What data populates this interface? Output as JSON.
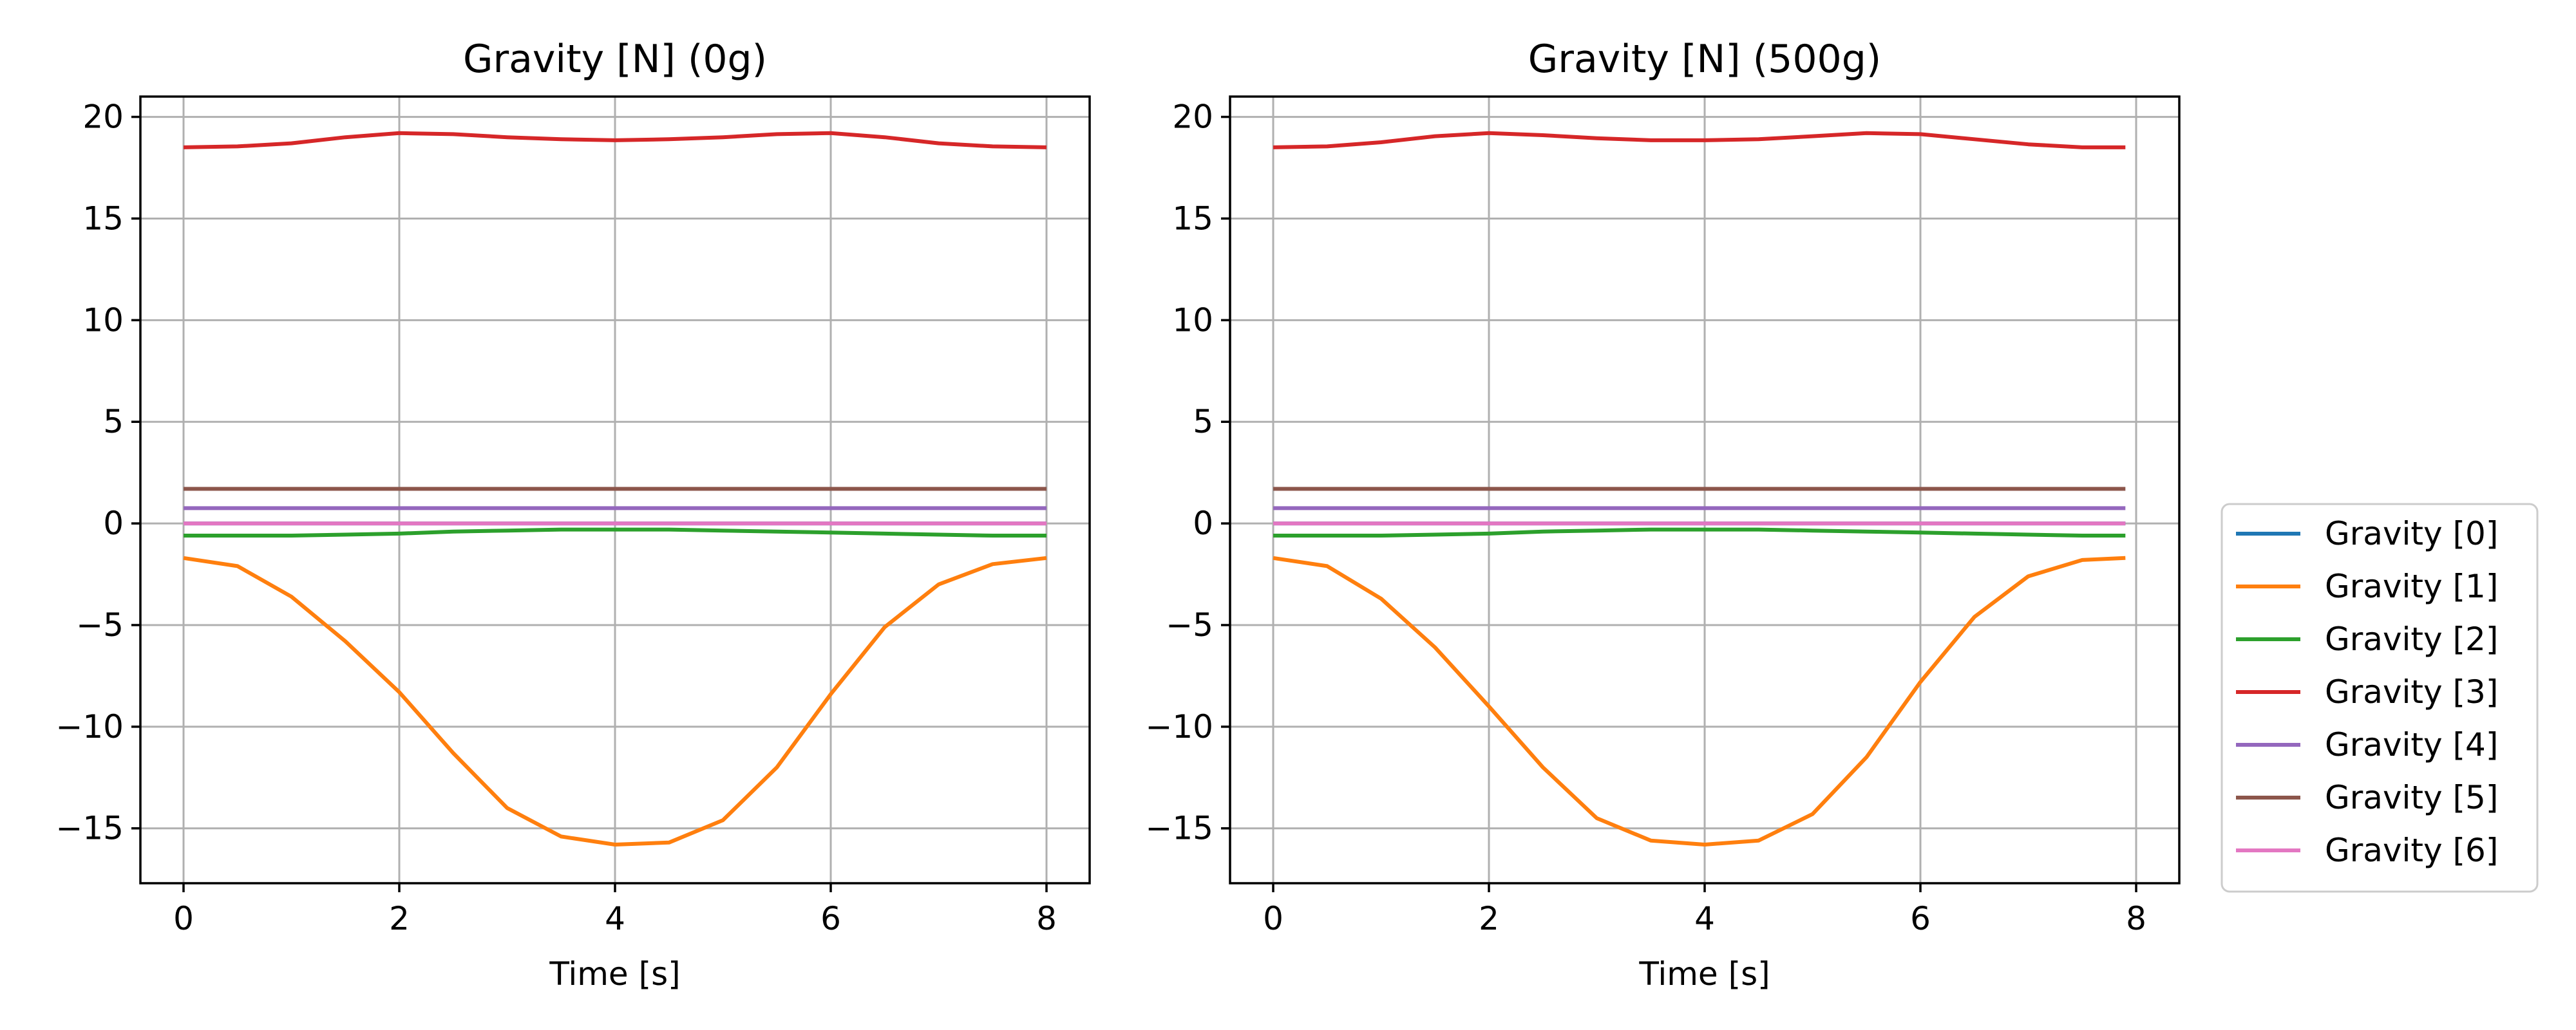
{
  "chart_data": [
    {
      "type": "line",
      "title": "Gravity [N] (0g)",
      "xlabel": "Time [s]",
      "ylabel": "",
      "xlim": [
        -0.4,
        8.4
      ],
      "ylim": [
        -17.7,
        21.0
      ],
      "xticks": [
        0,
        2,
        4,
        6,
        8
      ],
      "xtick_labels": [
        "0",
        "2",
        "4",
        "6",
        "8"
      ],
      "yticks": [
        -15,
        -10,
        -5,
        0,
        5,
        10,
        15,
        20
      ],
      "ytick_labels": [
        "−15",
        "−10",
        "−5",
        "0",
        "5",
        "10",
        "15",
        "20"
      ],
      "grid": true,
      "x": [
        0,
        0.5,
        1,
        1.5,
        2,
        2.5,
        3,
        3.5,
        4,
        4.5,
        5,
        5.5,
        6,
        6.5,
        7,
        7.5,
        8
      ],
      "series": [
        {
          "name": "Gravity [0]",
          "color": "#1f77b4",
          "values": [
            0,
            0,
            0,
            0,
            0,
            0,
            0,
            0,
            0,
            0,
            0,
            0,
            0,
            0,
            0,
            0,
            0
          ]
        },
        {
          "name": "Gravity [1]",
          "color": "#ff7f0e",
          "values": [
            -1.7,
            -2.1,
            -3.6,
            -5.8,
            -8.3,
            -11.3,
            -14.0,
            -15.4,
            -15.8,
            -15.7,
            -14.6,
            -12.0,
            -8.4,
            -5.1,
            -3.0,
            -2.0,
            -1.7
          ]
        },
        {
          "name": "Gravity [2]",
          "color": "#2ca02c",
          "values": [
            -0.6,
            -0.6,
            -0.6,
            -0.55,
            -0.5,
            -0.4,
            -0.35,
            -0.3,
            -0.3,
            -0.3,
            -0.35,
            -0.4,
            -0.45,
            -0.5,
            -0.55,
            -0.6,
            -0.6
          ]
        },
        {
          "name": "Gravity [3]",
          "color": "#d62728",
          "values": [
            18.5,
            18.55,
            18.7,
            19.0,
            19.2,
            19.15,
            19.0,
            18.9,
            18.85,
            18.9,
            19.0,
            19.15,
            19.2,
            19.0,
            18.7,
            18.55,
            18.5
          ]
        },
        {
          "name": "Gravity [4]",
          "color": "#9467bd",
          "values": [
            0.75,
            0.75,
            0.75,
            0.75,
            0.75,
            0.75,
            0.75,
            0.75,
            0.75,
            0.75,
            0.75,
            0.75,
            0.75,
            0.75,
            0.75,
            0.75,
            0.75
          ]
        },
        {
          "name": "Gravity [5]",
          "color": "#8c564b",
          "values": [
            1.7,
            1.7,
            1.7,
            1.7,
            1.7,
            1.7,
            1.7,
            1.7,
            1.7,
            1.7,
            1.7,
            1.7,
            1.7,
            1.7,
            1.7,
            1.7,
            1.7
          ]
        },
        {
          "name": "Gravity [6]",
          "color": "#e377c2",
          "values": [
            0,
            0,
            0,
            0,
            0,
            0,
            0,
            0,
            0,
            0,
            0,
            0,
            0,
            0,
            0,
            0,
            0
          ]
        }
      ]
    },
    {
      "type": "line",
      "title": "Gravity [N] (500g)",
      "xlabel": "Time [s]",
      "ylabel": "",
      "xlim": [
        -0.4,
        8.4
      ],
      "ylim": [
        -17.7,
        21.0
      ],
      "xticks": [
        0,
        2,
        4,
        6,
        8
      ],
      "xtick_labels": [
        "0",
        "2",
        "4",
        "6",
        "8"
      ],
      "yticks": [
        -15,
        -10,
        -5,
        0,
        5,
        10,
        15,
        20
      ],
      "ytick_labels": [
        "−15",
        "−10",
        "−5",
        "0",
        "5",
        "10",
        "15",
        "20"
      ],
      "grid": true,
      "x": [
        0,
        0.5,
        1,
        1.5,
        2,
        2.5,
        3,
        3.5,
        4,
        4.5,
        5,
        5.5,
        6,
        6.5,
        7,
        7.5,
        7.9
      ],
      "series": [
        {
          "name": "Gravity [0]",
          "color": "#1f77b4",
          "values": [
            0,
            0,
            0,
            0,
            0,
            0,
            0,
            0,
            0,
            0,
            0,
            0,
            0,
            0,
            0,
            0,
            0
          ]
        },
        {
          "name": "Gravity [1]",
          "color": "#ff7f0e",
          "values": [
            -1.7,
            -2.1,
            -3.7,
            -6.1,
            -9.0,
            -12.0,
            -14.5,
            -15.6,
            -15.8,
            -15.6,
            -14.3,
            -11.5,
            -7.8,
            -4.6,
            -2.6,
            -1.8,
            -1.7
          ]
        },
        {
          "name": "Gravity [2]",
          "color": "#2ca02c",
          "values": [
            -0.6,
            -0.6,
            -0.6,
            -0.55,
            -0.5,
            -0.4,
            -0.35,
            -0.3,
            -0.3,
            -0.3,
            -0.35,
            -0.4,
            -0.45,
            -0.5,
            -0.55,
            -0.6,
            -0.6
          ]
        },
        {
          "name": "Gravity [3]",
          "color": "#d62728",
          "values": [
            18.5,
            18.55,
            18.75,
            19.05,
            19.2,
            19.1,
            18.95,
            18.85,
            18.85,
            18.9,
            19.05,
            19.2,
            19.15,
            18.9,
            18.65,
            18.5,
            18.5
          ]
        },
        {
          "name": "Gravity [4]",
          "color": "#9467bd",
          "values": [
            0.75,
            0.75,
            0.75,
            0.75,
            0.75,
            0.75,
            0.75,
            0.75,
            0.75,
            0.75,
            0.75,
            0.75,
            0.75,
            0.75,
            0.75,
            0.75,
            0.75
          ]
        },
        {
          "name": "Gravity [5]",
          "color": "#8c564b",
          "values": [
            1.7,
            1.7,
            1.7,
            1.7,
            1.7,
            1.7,
            1.7,
            1.7,
            1.7,
            1.7,
            1.7,
            1.7,
            1.7,
            1.7,
            1.7,
            1.7,
            1.7
          ]
        },
        {
          "name": "Gravity [6]",
          "color": "#e377c2",
          "values": [
            0,
            0,
            0,
            0,
            0,
            0,
            0,
            0,
            0,
            0,
            0,
            0,
            0,
            0,
            0,
            0,
            0
          ]
        }
      ]
    }
  ],
  "legend": {
    "placement": "right",
    "entries": [
      {
        "label": "Gravity [0]",
        "color": "#1f77b4"
      },
      {
        "label": "Gravity [1]",
        "color": "#ff7f0e"
      },
      {
        "label": "Gravity [2]",
        "color": "#2ca02c"
      },
      {
        "label": "Gravity [3]",
        "color": "#d62728"
      },
      {
        "label": "Gravity [4]",
        "color": "#9467bd"
      },
      {
        "label": "Gravity [5]",
        "color": "#8c564b"
      },
      {
        "label": "Gravity [6]",
        "color": "#e377c2"
      }
    ]
  }
}
